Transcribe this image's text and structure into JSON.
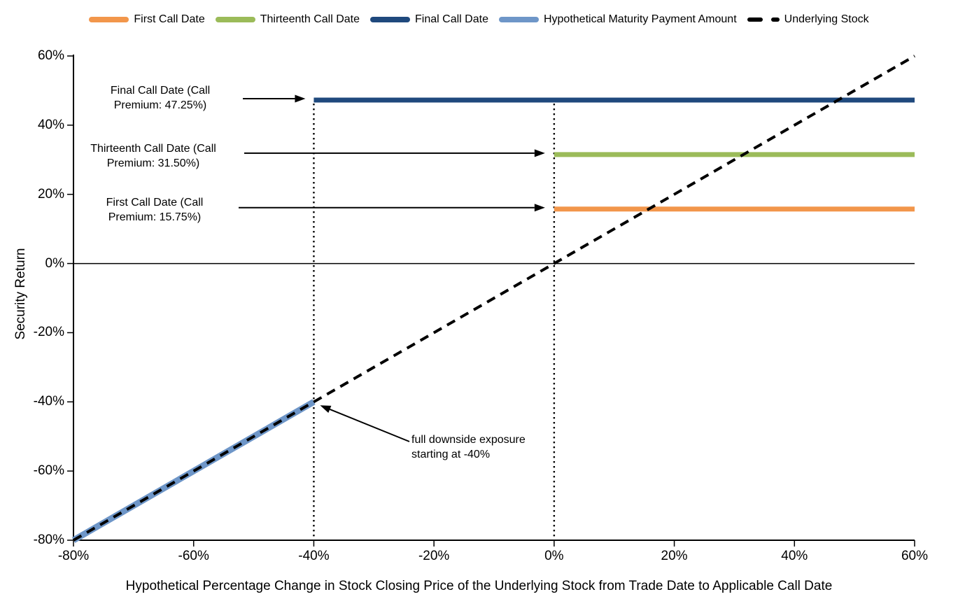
{
  "chart_data": {
    "type": "line",
    "title": "",
    "xlabel": "Hypothetical Percentage Change in Stock Closing Price of the Underlying Stock from Trade Date to Applicable Call Date",
    "ylabel": "Security Return",
    "xlim": [
      -80,
      60
    ],
    "ylim": [
      -80,
      60
    ],
    "xticks": [
      -80,
      -60,
      -40,
      -20,
      0,
      20,
      40,
      60
    ],
    "yticks": [
      60,
      40,
      20,
      0,
      -20,
      -40,
      -60,
      -80
    ],
    "tick_suffix": "%",
    "grid": false,
    "legend_position": "top",
    "axis_color": "#000000",
    "series": [
      {
        "name": "First Call Date",
        "color": "#F2964B",
        "style": "solid",
        "width": 7,
        "points": [
          [
            0,
            15.75
          ],
          [
            60,
            15.75
          ]
        ]
      },
      {
        "name": "Thirteenth Call Date",
        "color": "#9BBB59",
        "style": "solid",
        "width": 7,
        "points": [
          [
            0,
            31.5
          ],
          [
            60,
            31.5
          ]
        ]
      },
      {
        "name": "Final Call Date",
        "color": "#1F497D",
        "style": "solid",
        "width": 7,
        "points": [
          [
            -40,
            47.25
          ],
          [
            60,
            47.25
          ]
        ]
      },
      {
        "name": "Hypothetical Maturity Payment Amount",
        "color": "#6E96C8",
        "style": "solid",
        "width": 9,
        "points": [
          [
            -80,
            -80
          ],
          [
            -40,
            -40
          ]
        ]
      },
      {
        "name": "Underlying Stock",
        "color": "#000000",
        "style": "dashed",
        "width": 4,
        "points": [
          [
            -80,
            -80
          ],
          [
            60,
            60
          ]
        ]
      }
    ],
    "reference_lines": [
      {
        "orientation": "vertical",
        "style": "dotted",
        "x": -40,
        "y_from": 47.25,
        "y_to": -80
      },
      {
        "orientation": "vertical",
        "style": "dotted",
        "x": 0,
        "y_from": 47.25,
        "y_to": -80
      },
      {
        "orientation": "horizontal",
        "style": "solid",
        "y": 0,
        "x_from": -80,
        "x_to": 60
      }
    ],
    "annotations": [
      {
        "line1": "Final Call Date (Call",
        "line2": "Premium: 47.25%)",
        "target": [
          -40,
          47.25
        ]
      },
      {
        "line1": "Thirteenth Call Date (Call",
        "line2": "Premium: 31.50%)",
        "target": [
          0,
          31.5
        ]
      },
      {
        "line1": "First Call Date (Call",
        "line2": "Premium: 15.75%)",
        "target": [
          0,
          15.75
        ]
      },
      {
        "line1": "full downside exposure",
        "line2": "starting at -40%",
        "target": [
          -40,
          -40
        ]
      }
    ]
  }
}
